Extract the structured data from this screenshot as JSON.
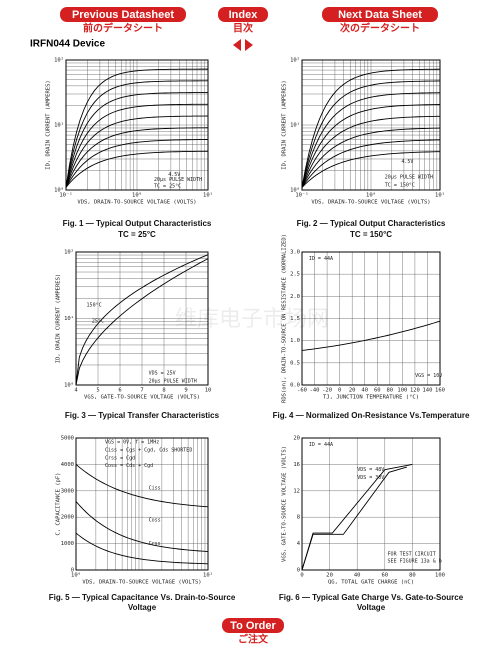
{
  "nav": {
    "previous": "Previous Datasheet",
    "previous_jp": "前のデータシート",
    "index": "Index",
    "index_jp": "目次",
    "next": "Next Data Sheet",
    "next_jp": "次のデータシート",
    "order": "To Order",
    "order_jp": "ご注文"
  },
  "device": "IRFN044 Device",
  "watermark": "维库电子市场网",
  "figures": [
    {
      "caption": "Fig. 1 — Typical Output Characteristics",
      "subcaption": "TC = 25°C",
      "xlabel": "VDS, DRAIN-TO-SOURCE VOLTAGE (VOLTS)",
      "ylabel": "ID, DRAIN CURRENT (AMPERES)",
      "xticks": [
        "10⁻¹",
        "10⁰",
        "10¹"
      ],
      "yticks": [
        "10⁰",
        "10¹",
        "10²"
      ],
      "notes": [
        "4.5V",
        "20µs PULSE WIDTH",
        "TC = 25°C"
      ]
    },
    {
      "caption": "Fig. 2 — Typical Output Characteristics",
      "subcaption": "TC = 150°C",
      "xlabel": "VDS, DRAIN-TO-SOURCE VOLTAGE (VOLTS)",
      "ylabel": "ID, DRAIN CURRENT (AMPERES)",
      "xticks": [
        "10⁻¹",
        "10⁰",
        "10¹"
      ],
      "yticks": [
        "10⁰",
        "10¹",
        "10²"
      ],
      "notes": [
        "4.5V",
        "20µs PULSE WIDTH",
        "TC = 150°C"
      ]
    },
    {
      "caption": "Fig. 3 — Typical Transfer Characteristics",
      "xlabel": "VGS, GATE-TO-SOURCE VOLTAGE (VOLTS)",
      "ylabel": "ID, DRAIN CURRENT (AMPERES)",
      "xticks": [
        "4",
        "5",
        "6",
        "7",
        "8",
        "9",
        "10"
      ],
      "yticks": [
        "10⁰",
        "10¹",
        "10²"
      ],
      "notes": [
        "150°C",
        "25°C",
        "VDS = 25V",
        "20µs PULSE WIDTH"
      ]
    },
    {
      "caption": "Fig. 4 — Normalized On-Resistance Vs.Temperature",
      "xlabel": "TJ, JUNCTION TEMPERATURE (°C)",
      "ylabel": "RDS(on), DRAIN-TO-SOURCE ON RESISTANCE (NORMALIZED)",
      "xticks": [
        "-60",
        "-40",
        "-20",
        "0",
        "20",
        "40",
        "60",
        "80",
        "100",
        "120",
        "140",
        "160"
      ],
      "yticks": [
        "0.0",
        "0.5",
        "1.0",
        "1.5",
        "2.0",
        "2.5",
        "3.0"
      ],
      "notes": [
        "ID = 44A",
        "VGS = 10V"
      ]
    },
    {
      "caption": "Fig. 5 — Typical Capacitance Vs. Drain-to-Source",
      "caption2": "Voltage",
      "xlabel": "VDS, DRAIN-TO-SOURCE VOLTAGE (VOLTS)",
      "ylabel": "C, CAPACITANCE (pF)",
      "xticks": [
        "10⁰",
        "10¹"
      ],
      "yticks": [
        "0",
        "1000",
        "2000",
        "3000",
        "4000",
        "5000"
      ],
      "notes": [
        "VGS = 0V,   f = 1MHz",
        "Ciss = Cgs + Cgd, Cds SHORTED",
        "Crss = Cgd",
        "Coss = Cds + Cgd",
        "Ciss",
        "Coss",
        "Crss"
      ]
    },
    {
      "caption": "Fig. 6 — Typical Gate Charge Vs. Gate-to-Source",
      "caption2": "Voltage",
      "xlabel": "QG, TOTAL GATE CHARGE (nC)",
      "ylabel": "VGS, GATE-TO-SOURCE VOLTAGE (VOLTS)",
      "xticks": [
        "0",
        "20",
        "40",
        "60",
        "80",
        "100"
      ],
      "yticks": [
        "0",
        "4",
        "8",
        "12",
        "16",
        "20"
      ],
      "notes": [
        "ID = 44A",
        "VDS = 48V",
        "VDS = 30V",
        "FOR TEST CIRCUIT",
        "SEE FIGURE 13a & b"
      ]
    }
  ]
}
